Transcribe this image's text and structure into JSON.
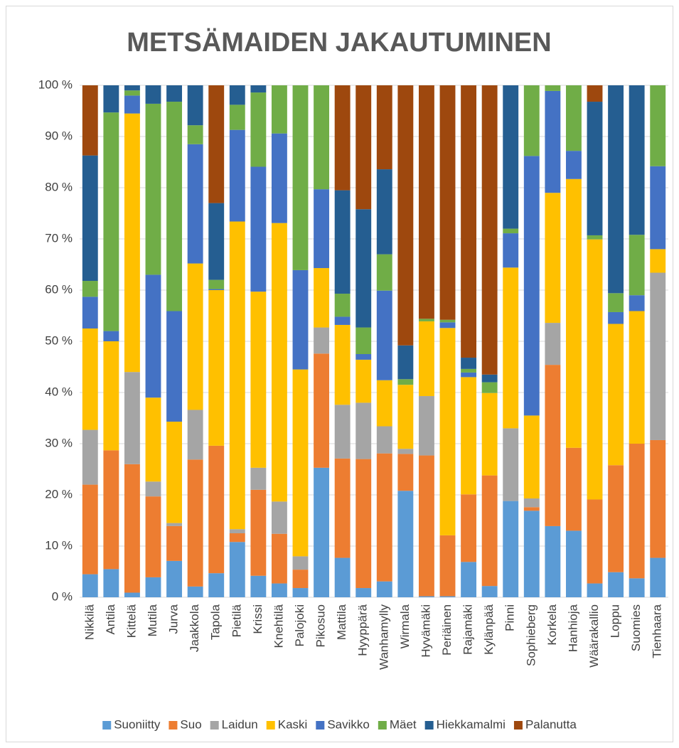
{
  "chart_data": {
    "type": "stacked_bar_percent",
    "title": "METSÄMAIDEN JAKAUTUMINEN",
    "categories": [
      "Nikkilä",
      "Antila",
      "Kittelä",
      "Mutila",
      "Jurva",
      "Jaakkola",
      "Tapola",
      "Pietilä",
      "Krissi",
      "Knehtilä",
      "Palojoki",
      "Pikosuo",
      "Mattila",
      "Hyyppärä",
      "Wanhamylly",
      "Wirmala",
      "Hyvämäki",
      "Periäinen",
      "Rajamäki",
      "Kylänpää",
      "Pinni",
      "Sophieberg",
      "Korkela",
      "Hanhioja",
      "Wäärakallio",
      "Loppu",
      "Suomies",
      "Tienhaara"
    ],
    "series": [
      {
        "name": "Suoniitty",
        "color": "#5b9bd5",
        "values": [
          4.5,
          5.5,
          0.9,
          3.9,
          7.1,
          2.1,
          4.7,
          10.8,
          4.2,
          2.7,
          1.8,
          25.3,
          7.7,
          1.8,
          3.1,
          20.8,
          0.2,
          0.2,
          6.9,
          2.2,
          18.8,
          16.9,
          13.9,
          13,
          2.7,
          4.9,
          3.7,
          7.7
        ]
      },
      {
        "name": "Suo",
        "color": "#ed7d31",
        "values": [
          17.5,
          23.2,
          25.1,
          15.8,
          6.8,
          24.8,
          24.9,
          1.7,
          16.8,
          9.7,
          3.6,
          22.3,
          19.4,
          25.2,
          25,
          7.2,
          27.5,
          11.9,
          13.2,
          21.6,
          0,
          0.7,
          31.5,
          16.2,
          16.4,
          20.9,
          26.3,
          23
        ]
      },
      {
        "name": "Laidun",
        "color": "#a5a5a5",
        "values": [
          10.7,
          0,
          18,
          2.9,
          0.6,
          9.7,
          0,
          0.8,
          4.3,
          6.3,
          2.6,
          5.1,
          10.5,
          11,
          5.3,
          1,
          11.6,
          0,
          0,
          0,
          14.2,
          1.7,
          8.2,
          0,
          0,
          0,
          0,
          32.7
        ]
      },
      {
        "name": "Kaski",
        "color": "#ffc000",
        "values": [
          19.8,
          21.3,
          50.5,
          16.4,
          19.8,
          28.6,
          30.4,
          60.1,
          34.4,
          54.4,
          36.5,
          11.6,
          15.6,
          8.4,
          9,
          12.5,
          14.6,
          40.5,
          22.9,
          16.1,
          31.4,
          16.2,
          25.4,
          52.5,
          50.8,
          27.6,
          25.9,
          4.6
        ]
      },
      {
        "name": "Savikko",
        "color": "#4472c4",
        "values": [
          6.2,
          2,
          3.5,
          24,
          21.6,
          23.3,
          0.2,
          17.9,
          24.4,
          17.5,
          19.4,
          15.4,
          1.6,
          1.1,
          17.5,
          0,
          0,
          1.1,
          0.9,
          0,
          6.7,
          50.7,
          19.9,
          5.5,
          0,
          2.3,
          3.1,
          16.2
        ]
      },
      {
        "name": "Mäet",
        "color": "#70ad47",
        "values": [
          3.1,
          42.7,
          1,
          33.4,
          40.9,
          3.7,
          1.8,
          4.9,
          14.5,
          9.4,
          36.1,
          20.3,
          4.5,
          5.2,
          7.1,
          1.1,
          0.5,
          0.5,
          0.7,
          2.1,
          0.9,
          13.8,
          1.1,
          12.8,
          0.8,
          3.7,
          11.8,
          15.8
        ]
      },
      {
        "name": "Hiekkamalmi",
        "color": "#255e91",
        "values": [
          24.5,
          5.3,
          1,
          3.6,
          3.2,
          7.8,
          15,
          3.8,
          1.4,
          0,
          0,
          0,
          20.2,
          23.1,
          16.6,
          6.6,
          0,
          0,
          2.2,
          1.5,
          28,
          0,
          0,
          0,
          26.1,
          40.6,
          29.2,
          0
        ]
      },
      {
        "name": "Palanutta",
        "color": "#9e480e",
        "values": [
          13.7,
          0,
          0,
          0,
          0,
          0,
          23,
          0,
          0,
          0,
          0,
          0,
          20.5,
          24.2,
          16.4,
          50.8,
          45.6,
          45.8,
          53.2,
          56.5,
          0,
          0,
          0,
          0,
          3.2,
          0,
          0,
          0
        ]
      }
    ],
    "ylim": [
      0,
      100
    ],
    "yticks": [
      {
        "value": 0,
        "label": "0 %"
      },
      {
        "value": 10,
        "label": "10 %"
      },
      {
        "value": 20,
        "label": "20 %"
      },
      {
        "value": 30,
        "label": "30 %"
      },
      {
        "value": 40,
        "label": "40 %"
      },
      {
        "value": 50,
        "label": "50 %"
      },
      {
        "value": 60,
        "label": "60 %"
      },
      {
        "value": 70,
        "label": "70 %"
      },
      {
        "value": 80,
        "label": "80 %"
      },
      {
        "value": 90,
        "label": "90 %"
      },
      {
        "value": 100,
        "label": "100 %"
      }
    ],
    "grid": true,
    "legend": "bottom"
  }
}
